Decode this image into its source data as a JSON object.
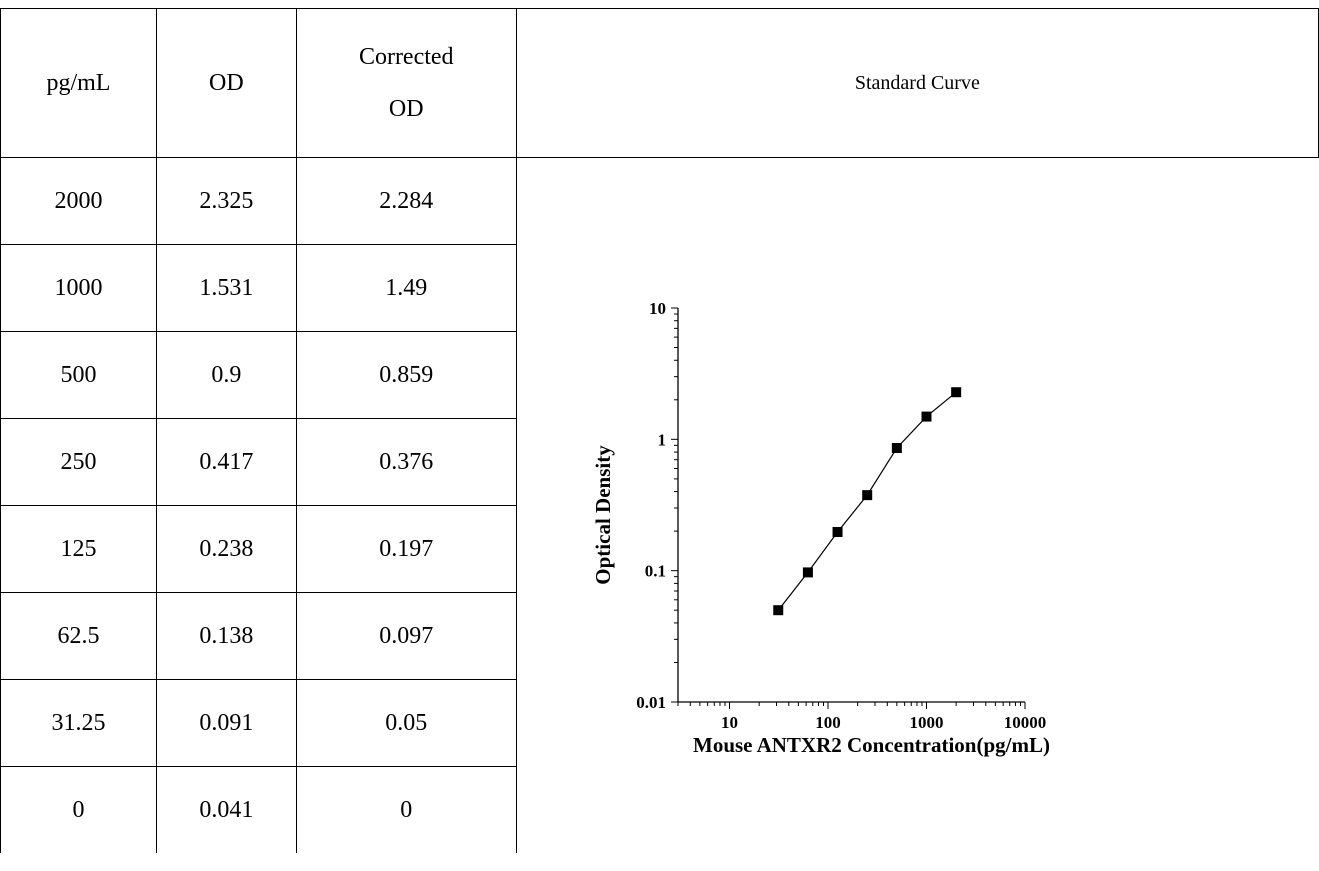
{
  "table": {
    "headers": {
      "conc": "pg/mL",
      "od": "OD",
      "corrected_line1": "Corrected",
      "corrected_line2": "OD",
      "curve": "Standard Curve"
    },
    "rows": [
      {
        "conc": "2000",
        "od": "2.325",
        "corrected": "2.284"
      },
      {
        "conc": "1000",
        "od": "1.531",
        "corrected": "1.49"
      },
      {
        "conc": "500",
        "od": "0.9",
        "corrected": "0.859"
      },
      {
        "conc": "250",
        "od": "0.417",
        "corrected": "0.376"
      },
      {
        "conc": "125",
        "od": "0.238",
        "corrected": "0.197"
      },
      {
        "conc": "62.5",
        "od": "0.138",
        "corrected": "0.097"
      },
      {
        "conc": "31.25",
        "od": "0.091",
        "corrected": "0.05"
      },
      {
        "conc": "0",
        "od": "0.041",
        "corrected": "0"
      }
    ]
  },
  "chart_data": {
    "type": "scatter",
    "title": "",
    "xlabel": "Mouse ANTXR2 Concentration(pg/mL)",
    "ylabel": "Optical Density",
    "x_scale": "log",
    "y_scale": "log",
    "xlim": [
      3,
      10000
    ],
    "ylim": [
      0.01,
      10
    ],
    "x_ticks": [
      "10",
      "100",
      "1000",
      "10000"
    ],
    "y_ticks": [
      "0.01",
      "0.1",
      "1",
      "10"
    ],
    "grid": false,
    "series": [
      {
        "x": [
          31.25,
          62.5,
          125,
          250,
          500,
          1000,
          2000
        ],
        "y": [
          0.05,
          0.097,
          0.197,
          0.376,
          0.859,
          1.49,
          2.284
        ],
        "marker": "square",
        "line": true,
        "color": "#000000"
      }
    ]
  }
}
